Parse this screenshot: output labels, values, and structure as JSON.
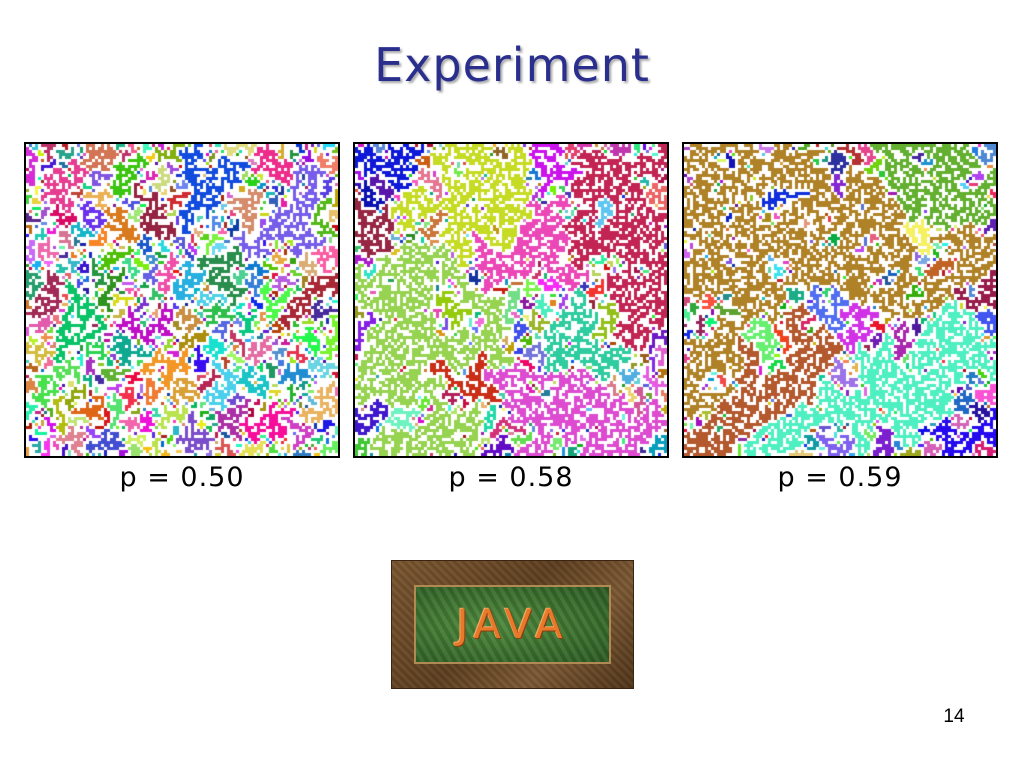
{
  "slide": {
    "title": "Experiment",
    "page_number": "14"
  },
  "panels": [
    {
      "caption": "p = 0.50",
      "p": 0.5
    },
    {
      "caption": "p = 0.58",
      "p": 0.58
    },
    {
      "caption": "p = 0.59",
      "p": 0.59
    }
  ],
  "logo": {
    "text": "JAVA"
  },
  "colors": {
    "title": "#2a2e8c",
    "panel_border": "#000000",
    "logo_text": "#e8792a"
  }
}
